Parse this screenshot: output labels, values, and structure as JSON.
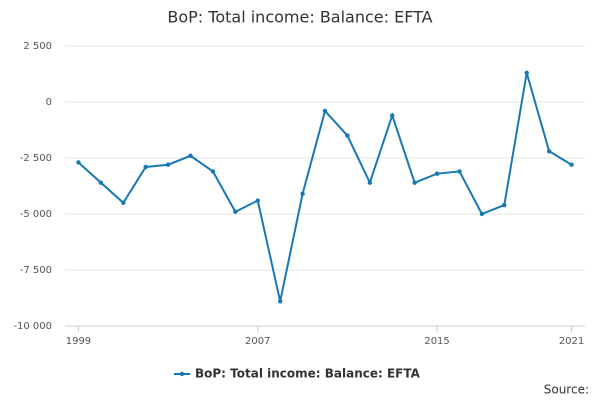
{
  "chart_data": {
    "type": "line",
    "title": "BoP: Total income: Balance: EFTA",
    "x": [
      1999,
      2000,
      2001,
      2002,
      2003,
      2004,
      2005,
      2006,
      2007,
      2008,
      2009,
      2010,
      2011,
      2012,
      2013,
      2014,
      2015,
      2016,
      2017,
      2018,
      2019,
      2020,
      2021
    ],
    "series": [
      {
        "name": "BoP: Total income: Balance: EFTA",
        "color": "#1878b4",
        "values": [
          -2700,
          -3600,
          -4500,
          -2900,
          -2800,
          -2400,
          -3100,
          -4900,
          -4400,
          -8900,
          -4100,
          -400,
          -1500,
          -3600,
          -600,
          -3600,
          -3200,
          -3100,
          -5000,
          -4600,
          1300,
          -2200,
          -2800
        ]
      }
    ],
    "xlim": [
      1998.4,
      2021.6
    ],
    "xticks": [
      1999,
      2007,
      2015,
      2021
    ],
    "ylim": [
      -10000,
      2500
    ],
    "yticks": [
      {
        "value": -10000,
        "label": "-10 000"
      },
      {
        "value": -7500,
        "label": "-7 500"
      },
      {
        "value": -5000,
        "label": "-5 000"
      },
      {
        "value": -2500,
        "label": "-2 500"
      },
      0,
      {
        "value": 2500,
        "label": "2 500"
      }
    ],
    "grid": true,
    "legend": "bottom",
    "source": "Source:"
  }
}
